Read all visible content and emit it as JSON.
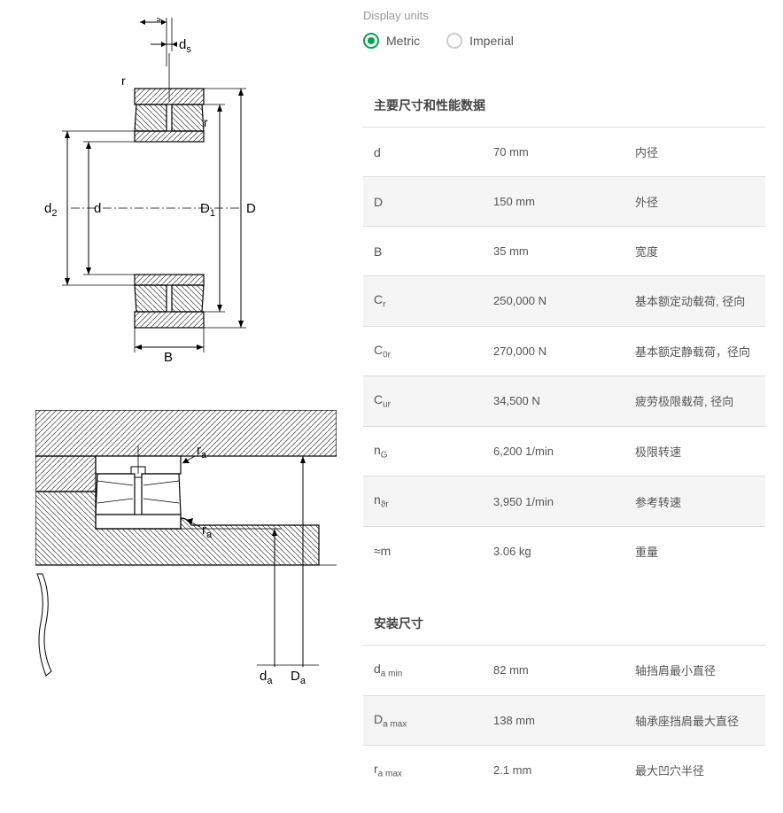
{
  "units": {
    "label": "Display units",
    "metric": "Metric",
    "imperial": "Imperial",
    "selected": "metric"
  },
  "section1": {
    "title": "主要尺寸和性能数据",
    "rows": [
      {
        "sym": "d",
        "sub": "",
        "val": "70 mm",
        "desc": "内径"
      },
      {
        "sym": "D",
        "sub": "",
        "val": "150 mm",
        "desc": "外径"
      },
      {
        "sym": "B",
        "sub": "",
        "val": "35 mm",
        "desc": "宽度"
      },
      {
        "sym": "C",
        "sub": "r",
        "val": "250,000 N",
        "desc": "基本额定动载荷, 径向"
      },
      {
        "sym": "C",
        "sub": "0r",
        "val": "270,000 N",
        "desc": "基本额定静载荷，径向"
      },
      {
        "sym": "C",
        "sub": "ur",
        "val": "34,500 N",
        "desc": "疲劳极限载荷, 径向"
      },
      {
        "sym": "n",
        "sub": "G",
        "val": "6,200 1/min",
        "desc": "极限转速"
      },
      {
        "sym": "n",
        "sub": "ϑr",
        "val": "3,950 1/min",
        "desc": "参考转速"
      },
      {
        "sym": "≈m",
        "sub": "",
        "val": "3.06 kg",
        "desc": "重量"
      }
    ]
  },
  "section2": {
    "title": "安装尺寸",
    "rows": [
      {
        "sym": "d",
        "sub": "a min",
        "val": "82 mm",
        "desc": "轴挡肩最小直径"
      },
      {
        "sym": "D",
        "sub": "a max",
        "val": "138 mm",
        "desc": "轴承座挡肩最大直径"
      },
      {
        "sym": "r",
        "sub": "a max",
        "val": "2.1 mm",
        "desc": "最大凹穴半径"
      }
    ]
  },
  "diagram1": {
    "labels": {
      "ns": "n",
      "ns_sub": "s",
      "ds": "d",
      "ds_sub": "s",
      "r1": "r",
      "r2": "r",
      "d2": "d",
      "d2_sub": "2",
      "d": "d",
      "D1": "D",
      "D1_sub": "1",
      "D": "D",
      "B": "B"
    },
    "stroke": "#000000",
    "hatch": "#555555",
    "fill": "#ffffff"
  },
  "diagram2": {
    "labels": {
      "ra1": "r",
      "ra1_sub": "a",
      "ra2": "r",
      "ra2_sub": "a",
      "da": "d",
      "da_sub": "a",
      "Da": "D",
      "Da_sub": "a"
    },
    "stroke": "#000000",
    "hatch": "#555555"
  }
}
